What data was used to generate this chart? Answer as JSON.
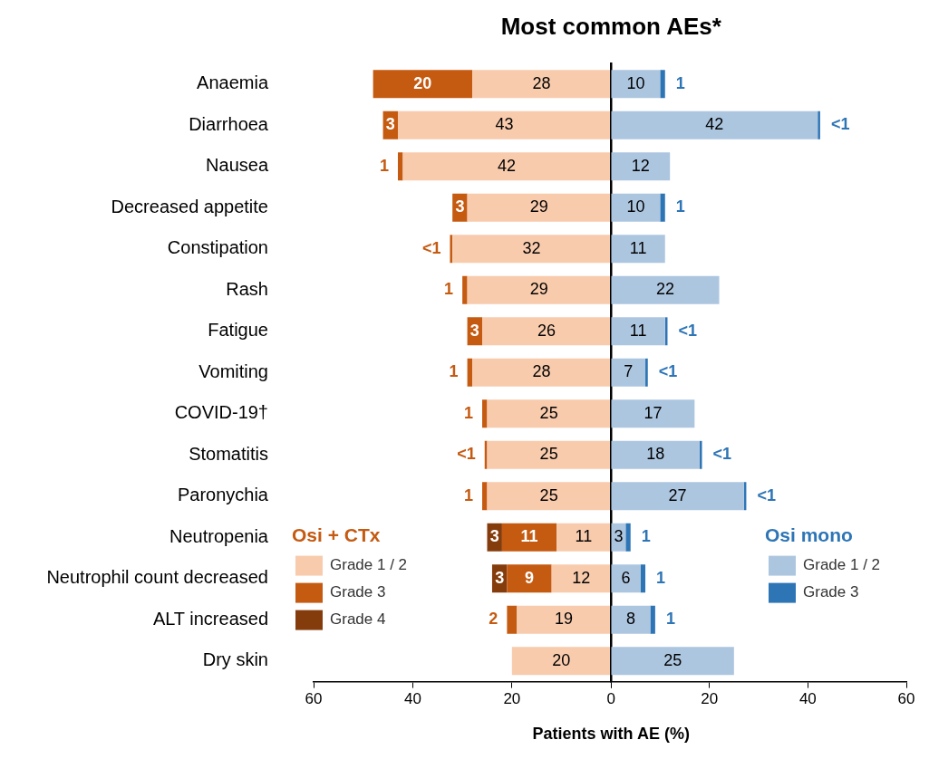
{
  "chart_data": [
    {
      "type": "bar",
      "orientation": "horizontal",
      "stacked": true,
      "title": "Most common AEs*",
      "xlabel": "Patients with AE (%)",
      "categories": [
        "Anaemia",
        "Diarrhoea",
        "Nausea",
        "Decreased appetite",
        "Constipation",
        "Rash",
        "Fatigue",
        "Vomiting",
        "COVID-19†",
        "Stomatitis",
        "Paronychia",
        "Neutropenia",
        "Neutrophil count decreased",
        "ALT increased",
        "Dry skin"
      ],
      "series": [
        {
          "name": "Grade 1 / 2",
          "color": "#f8cbad",
          "values": [
            28,
            43,
            42,
            29,
            32,
            29,
            26,
            28,
            25,
            25,
            25,
            11,
            12,
            19,
            20
          ],
          "value_labels": [
            "28",
            "43",
            "42",
            "29",
            "32",
            "29",
            "26",
            "28",
            "25",
            "25",
            "25",
            "11",
            "12",
            "19",
            "20"
          ]
        },
        {
          "name": "Grade 3",
          "color": "#c55a11",
          "values": [
            20,
            3,
            1,
            3,
            0.5,
            1,
            3,
            1,
            1,
            0.5,
            1,
            11,
            9,
            2,
            0
          ],
          "value_labels": [
            "20",
            "3",
            "1",
            "3",
            "<1",
            "1",
            "3",
            "1",
            "1",
            "<1",
            "1",
            "11",
            "9",
            "2",
            null
          ]
        },
        {
          "name": "Grade 4",
          "color": "#843c0c",
          "values": [
            0,
            0,
            0,
            0,
            0,
            0,
            0,
            0,
            0,
            0,
            0,
            3,
            3,
            0,
            0
          ],
          "value_labels": [
            null,
            null,
            null,
            null,
            null,
            null,
            null,
            null,
            null,
            null,
            null,
            "3",
            "3",
            null,
            null
          ]
        }
      ],
      "xlim": [
        60,
        0
      ],
      "xticks": [
        60,
        40,
        20,
        0
      ],
      "legend": "bottom left",
      "legend_title": "Osi + CTx",
      "grid": false
    },
    {
      "type": "bar",
      "orientation": "horizontal",
      "stacked": true,
      "tick_labels": "x",
      "categories": [
        null,
        null,
        null,
        null,
        null,
        null,
        null,
        null,
        null,
        null,
        null,
        null,
        null,
        null,
        null
      ],
      "series": [
        {
          "name": "Grade 1 / 2",
          "color": "#adc6e0",
          "values": [
            10,
            42,
            12,
            10,
            11,
            22,
            11,
            7,
            17,
            18,
            27,
            3,
            6,
            8,
            25
          ],
          "value_labels": [
            "10",
            "42",
            "12",
            "10",
            "11",
            "22",
            "11",
            "7",
            "17",
            "18",
            "27",
            "3",
            "6",
            "8",
            "25"
          ]
        },
        {
          "name": "Grade 3",
          "color": "#2e75b6",
          "values": [
            1,
            0.5,
            0,
            1,
            0,
            0,
            0.5,
            0.5,
            0,
            0.5,
            0.5,
            1,
            1,
            1,
            0
          ],
          "value_labels": [
            "1",
            "<1",
            null,
            "1",
            null,
            null,
            "<1",
            "<1",
            null,
            "<1",
            "<1",
            "1",
            "1",
            "1",
            null
          ]
        }
      ],
      "xlim": [
        0,
        60
      ],
      "xticks": [
        {
          "value": 0,
          "label": null
        },
        20,
        40,
        60
      ],
      "legend": "bottom right",
      "legend_title": "Osi mono",
      "grid": false
    }
  ]
}
